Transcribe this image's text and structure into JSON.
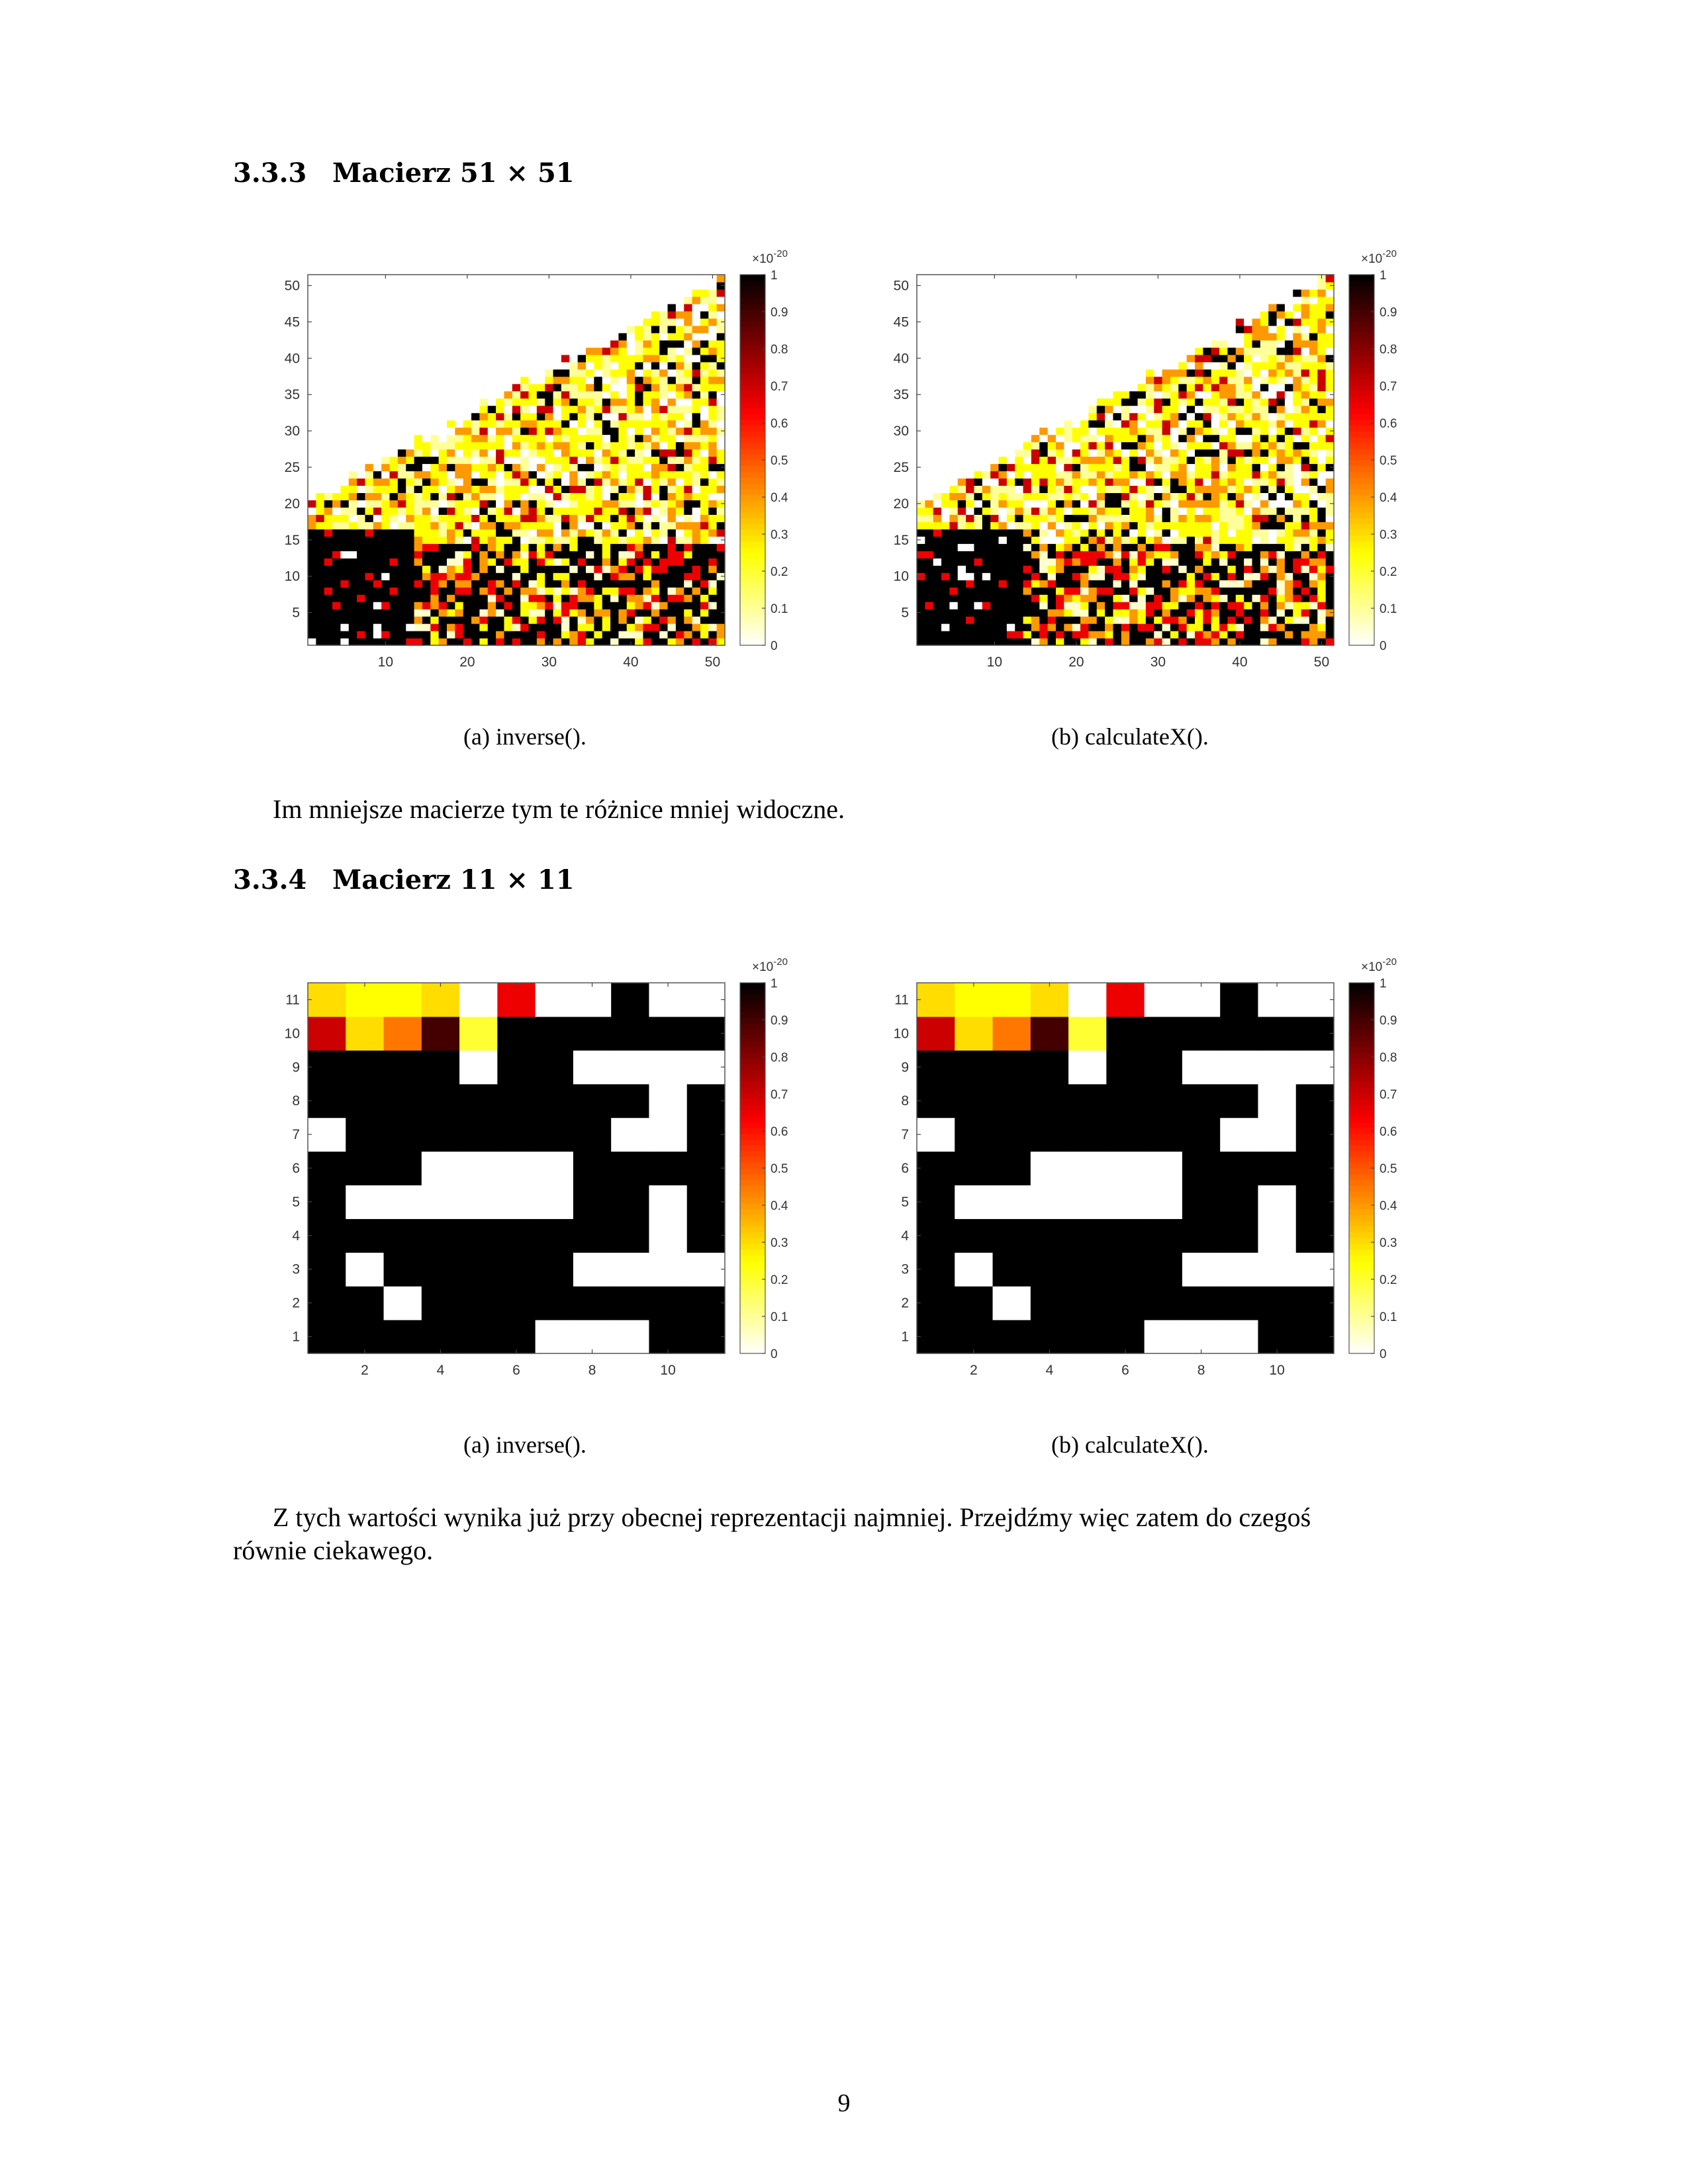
{
  "section_a": {
    "number": "3.3.3",
    "title": "Macierz 51 × 51",
    "caption_a": "(a) inverse().",
    "caption_b": "(b) calculateX().",
    "text_after": "Im mniejsze macierze tym te różnice mniej widoczne."
  },
  "section_b": {
    "number": "3.3.4",
    "title": "Macierz 11 × 11",
    "caption_a": "(a) inverse().",
    "caption_b": "(b) calculateX().",
    "text_after_line1": "Z tych wartości wynika już przy obecnej reprezentacji najmniej. Przejdźmy więc zatem do czegoś",
    "text_after_line2": "równie ciekawego."
  },
  "page_number": "9",
  "chart_data": [
    {
      "id": "fig-51-inverse",
      "type": "heatmap",
      "title": "",
      "size": 51,
      "xlabel": "",
      "ylabel": "",
      "x_ticks": [
        10,
        20,
        30,
        40,
        50
      ],
      "y_ticks": [
        5,
        10,
        15,
        20,
        25,
        30,
        35,
        40,
        45,
        50
      ],
      "colormap": "hot (reversed)",
      "colorbar": {
        "range": [
          0,
          1
        ],
        "exponent_label": "×10",
        "exponent": "-20",
        "ticks": [
          "0",
          "0.1",
          "0.2",
          "0.3",
          "0.4",
          "0.5",
          "0.6",
          "0.7",
          "0.8",
          "0.9",
          "1"
        ]
      },
      "seed": 7,
      "note": "upper-left triangle blank (zero), dense black block bottom-left"
    },
    {
      "id": "fig-51-calculateX",
      "type": "heatmap",
      "title": "",
      "size": 51,
      "xlabel": "",
      "ylabel": "",
      "x_ticks": [
        10,
        20,
        30,
        40,
        50
      ],
      "y_ticks": [
        5,
        10,
        15,
        20,
        25,
        30,
        35,
        40,
        45,
        50
      ],
      "colormap": "hot (reversed)",
      "colorbar": {
        "range": [
          0,
          1
        ],
        "exponent_label": "×10",
        "exponent": "-20",
        "ticks": [
          "0",
          "0.1",
          "0.2",
          "0.3",
          "0.4",
          "0.5",
          "0.6",
          "0.7",
          "0.8",
          "0.9",
          "1"
        ]
      },
      "seed": 11,
      "note": "upper-left triangle blank (zero), dense black block bottom-left"
    },
    {
      "id": "fig-11-inverse",
      "type": "heatmap",
      "title": "",
      "size": 11,
      "x_ticks": [
        2,
        4,
        6,
        8,
        10
      ],
      "y_ticks": [
        1,
        2,
        3,
        4,
        5,
        6,
        7,
        8,
        9,
        10,
        11
      ],
      "colorbar": {
        "range": [
          0,
          1
        ],
        "exponent_label": "×10",
        "exponent": "-20",
        "ticks": [
          "0",
          "0.1",
          "0.2",
          "0.3",
          "0.4",
          "0.5",
          "0.6",
          "0.7",
          "0.8",
          "0.9",
          "1"
        ]
      },
      "rows_top_to_bottom": [
        [
          0.3,
          0.25,
          0.25,
          0.3,
          0.0,
          0.65,
          0.0,
          0.0,
          1.0,
          0.0,
          0.0
        ],
        [
          0.7,
          0.3,
          0.45,
          0.9,
          0.2,
          1.0,
          1.0,
          1.0,
          1.0,
          1.0,
          1.0
        ],
        [
          1.0,
          1.0,
          1.0,
          1.0,
          0.0,
          1.0,
          1.0,
          0.0,
          0.0,
          0.0,
          0.0
        ],
        [
          1.0,
          1.0,
          1.0,
          1.0,
          1.0,
          1.0,
          1.0,
          1.0,
          1.0,
          0.0,
          1.0
        ],
        [
          0.0,
          1.0,
          1.0,
          1.0,
          1.0,
          1.0,
          1.0,
          1.0,
          0.0,
          0.0,
          1.0
        ],
        [
          1.0,
          1.0,
          1.0,
          0.0,
          0.0,
          0.0,
          0.0,
          1.0,
          1.0,
          1.0,
          1.0
        ],
        [
          1.0,
          0.0,
          0.0,
          0.0,
          0.0,
          0.0,
          0.0,
          1.0,
          1.0,
          0.0,
          1.0
        ],
        [
          1.0,
          1.0,
          1.0,
          1.0,
          1.0,
          1.0,
          1.0,
          1.0,
          1.0,
          0.0,
          1.0
        ],
        [
          1.0,
          0.0,
          1.0,
          1.0,
          1.0,
          1.0,
          1.0,
          0.0,
          0.0,
          0.0,
          0.0
        ],
        [
          1.0,
          1.0,
          0.0,
          1.0,
          1.0,
          1.0,
          1.0,
          1.0,
          1.0,
          1.0,
          1.0
        ],
        [
          1.0,
          1.0,
          1.0,
          1.0,
          1.0,
          1.0,
          0.0,
          0.0,
          0.0,
          1.0,
          1.0
        ]
      ]
    },
    {
      "id": "fig-11-calculateX",
      "type": "heatmap",
      "title": "",
      "size": 11,
      "x_ticks": [
        2,
        4,
        6,
        8,
        10
      ],
      "y_ticks": [
        1,
        2,
        3,
        4,
        5,
        6,
        7,
        8,
        9,
        10,
        11
      ],
      "colorbar": {
        "range": [
          0,
          1
        ],
        "exponent_label": "×10",
        "exponent": "-20",
        "ticks": [
          "0",
          "0.1",
          "0.2",
          "0.3",
          "0.4",
          "0.5",
          "0.6",
          "0.7",
          "0.8",
          "0.9",
          "1"
        ]
      },
      "rows_top_to_bottom": [
        [
          0.3,
          0.25,
          0.25,
          0.3,
          0.0,
          0.65,
          0.0,
          0.0,
          1.0,
          0.0,
          0.0
        ],
        [
          0.7,
          0.3,
          0.45,
          0.9,
          0.2,
          1.0,
          1.0,
          1.0,
          1.0,
          1.0,
          1.0
        ],
        [
          1.0,
          1.0,
          1.0,
          1.0,
          0.0,
          1.0,
          1.0,
          0.0,
          0.0,
          0.0,
          0.0
        ],
        [
          1.0,
          1.0,
          1.0,
          1.0,
          1.0,
          1.0,
          1.0,
          1.0,
          1.0,
          0.0,
          1.0
        ],
        [
          0.0,
          1.0,
          1.0,
          1.0,
          1.0,
          1.0,
          1.0,
          1.0,
          0.0,
          0.0,
          1.0
        ],
        [
          1.0,
          1.0,
          1.0,
          0.0,
          0.0,
          0.0,
          0.0,
          1.0,
          1.0,
          1.0,
          1.0
        ],
        [
          1.0,
          0.0,
          0.0,
          0.0,
          0.0,
          0.0,
          0.0,
          1.0,
          1.0,
          0.0,
          1.0
        ],
        [
          1.0,
          1.0,
          1.0,
          1.0,
          1.0,
          1.0,
          1.0,
          1.0,
          1.0,
          0.0,
          1.0
        ],
        [
          1.0,
          0.0,
          1.0,
          1.0,
          1.0,
          1.0,
          1.0,
          0.0,
          0.0,
          0.0,
          0.0
        ],
        [
          1.0,
          1.0,
          0.0,
          1.0,
          1.0,
          1.0,
          1.0,
          1.0,
          1.0,
          1.0,
          1.0
        ],
        [
          1.0,
          1.0,
          1.0,
          1.0,
          1.0,
          1.0,
          0.0,
          0.0,
          0.0,
          1.0,
          1.0
        ]
      ]
    }
  ]
}
